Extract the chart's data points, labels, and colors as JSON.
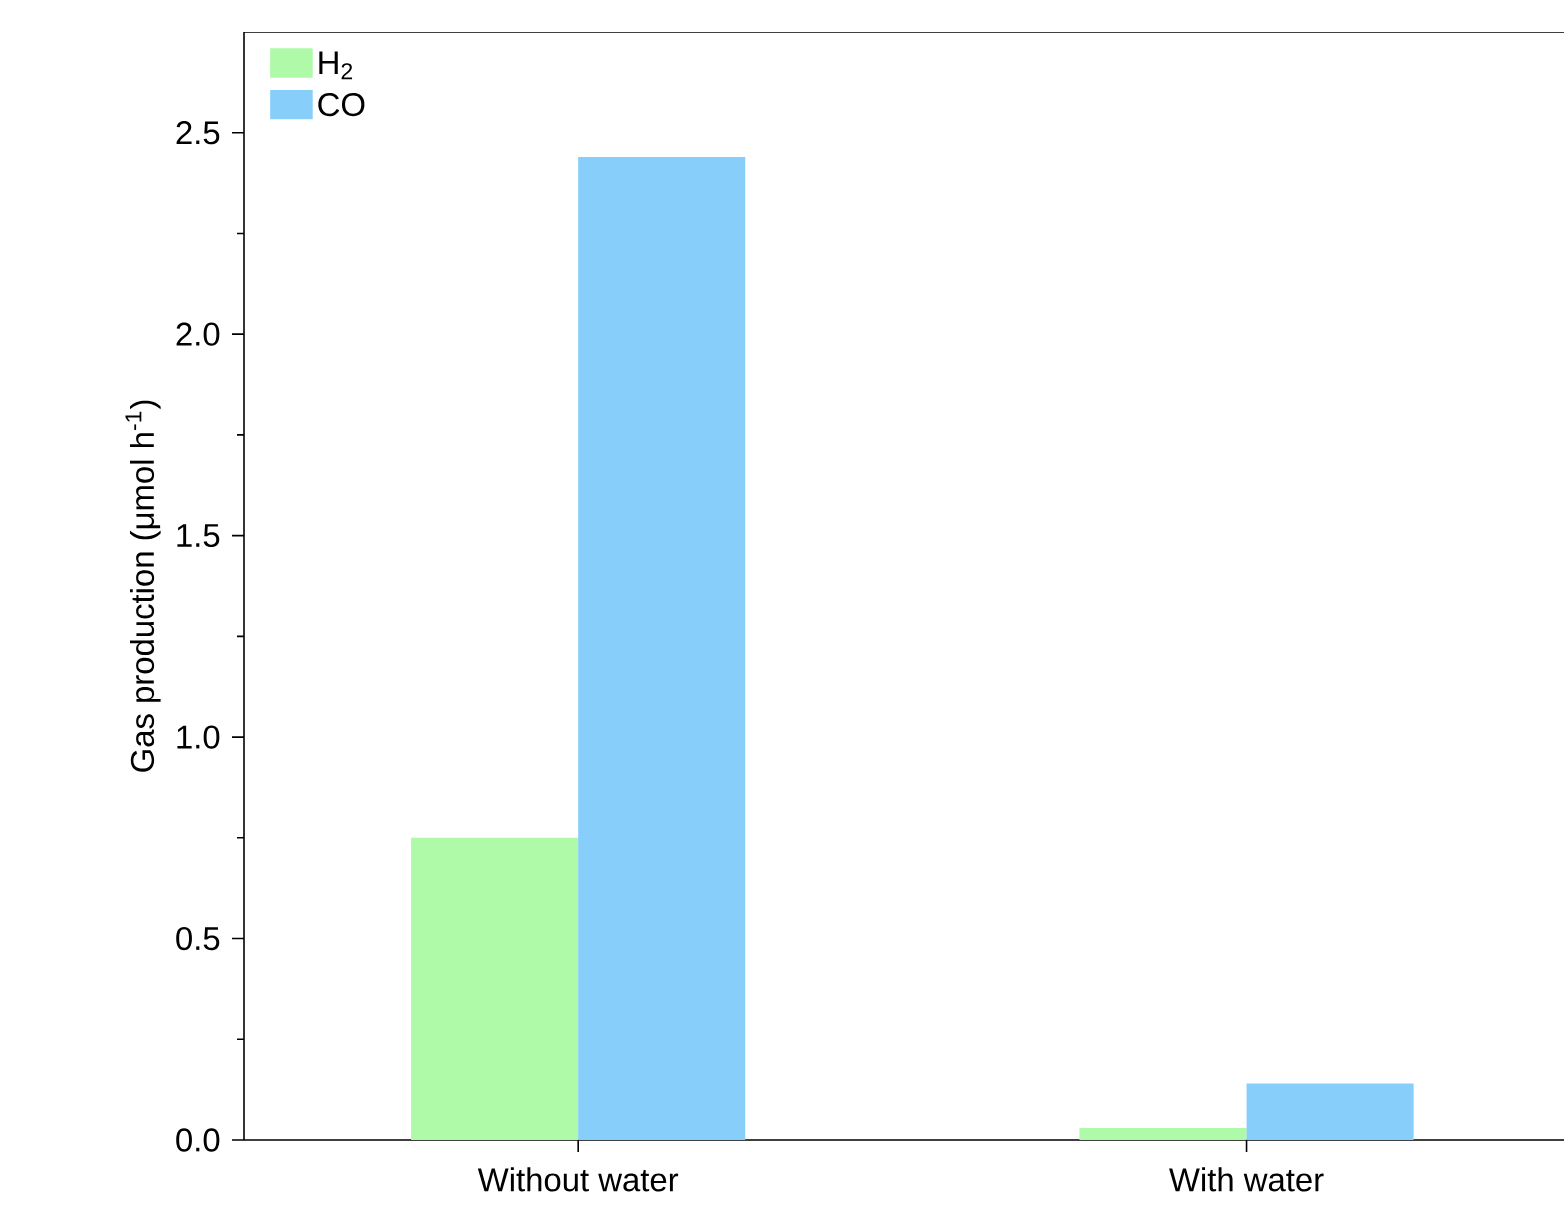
{
  "chart_data": {
    "type": "bar",
    "ylabel": "Gas production (μmol h$^{-1}$)",
    "categories": [
      "Without water",
      "With water"
    ],
    "series": [
      {
        "name": "H$_{2}$",
        "color": "#aefaa8",
        "values": [
          0.75,
          0.03
        ]
      },
      {
        "name": "CO",
        "color": "#87cefa",
        "values": [
          2.44,
          0.14
        ]
      }
    ],
    "ylim": [
      0,
      2.75
    ],
    "yticks": [
      {
        "value": 0,
        "label": "0.0"
      },
      {
        "value": 0.5,
        "label": "0.5"
      },
      {
        "value": 1,
        "label": "1.0"
      },
      {
        "value": 1.5,
        "label": "1.5"
      },
      {
        "value": 2,
        "label": "2.0"
      },
      {
        "value": 2.5,
        "label": "2.5"
      }
    ],
    "legend": "top left",
    "grid": false
  }
}
